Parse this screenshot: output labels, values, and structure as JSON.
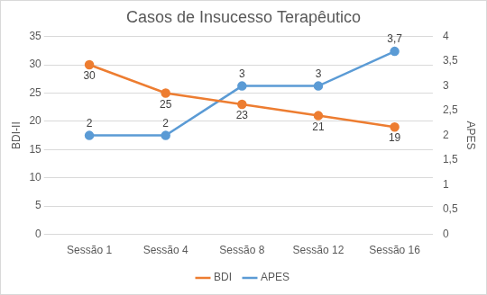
{
  "chart_data": {
    "type": "line",
    "title": "Casos de Insucesso Terapêutico",
    "categories": [
      "Sessão 1",
      "Sessão 4",
      "Sessão 8",
      "Sessão 12",
      "Sessão 16"
    ],
    "series": [
      {
        "name": "BDI",
        "color": "#ED7D31",
        "marker": "circle",
        "values": [
          30,
          25,
          23,
          21,
          19
        ]
      },
      {
        "name": "APES",
        "color": "#5B9BD5",
        "marker": "circle",
        "axis": "y2",
        "values": [
          2,
          2,
          3,
          3,
          3.7
        ],
        "value_labels": [
          "2",
          "2",
          "3",
          "3",
          "3,7"
        ]
      }
    ],
    "y_label": "BDI-II",
    "y2_label": "APES",
    "ylim": [
      0,
      35
    ],
    "yticks": [
      0,
      5,
      10,
      15,
      20,
      25,
      30,
      35
    ],
    "y2lim": [
      0,
      4
    ],
    "y2ticks": [
      0,
      {
        "value": 0.5,
        "label": "0,5"
      },
      1,
      {
        "value": 1.5,
        "label": "1,5"
      },
      2,
      {
        "value": 2.5,
        "label": "2,5"
      },
      3,
      {
        "value": 3.5,
        "label": "3,5"
      },
      4
    ],
    "grid": true,
    "legend": "bottom",
    "data_labels": true
  }
}
